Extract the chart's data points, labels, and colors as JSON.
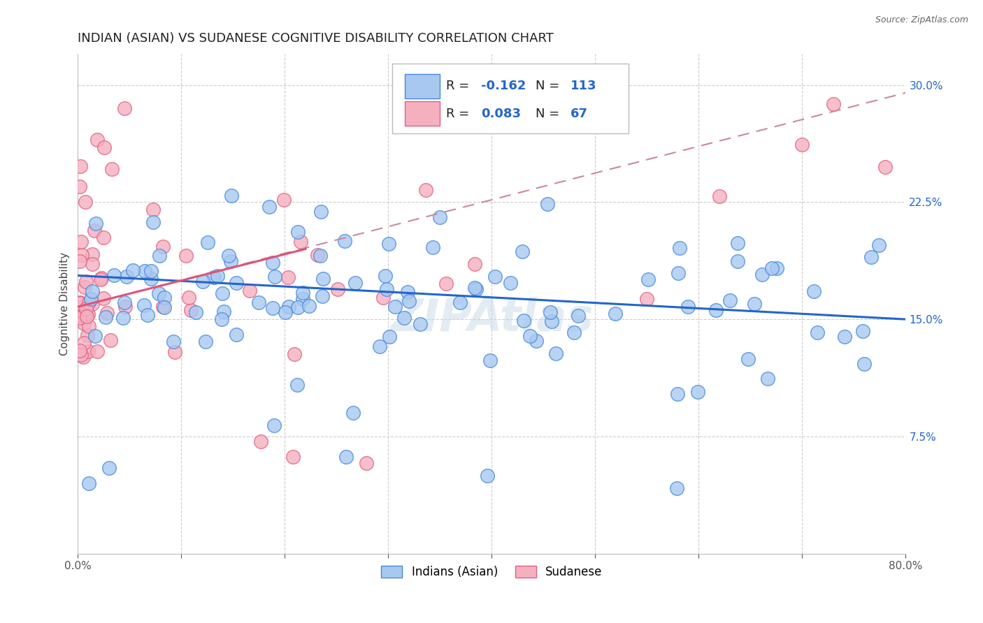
{
  "title": "INDIAN (ASIAN) VS SUDANESE COGNITIVE DISABILITY CORRELATION CHART",
  "source": "Source: ZipAtlas.com",
  "ylabel": "Cognitive Disability",
  "legend_label_blue": "Indians (Asian)",
  "legend_label_pink": "Sudanese",
  "r_blue": -0.162,
  "n_blue": 113,
  "r_pink": 0.083,
  "n_pink": 67,
  "xlim": [
    0.0,
    0.8
  ],
  "ylim": [
    0.0,
    0.32
  ],
  "yticks_right": [
    0.075,
    0.15,
    0.225,
    0.3
  ],
  "ytick_labels_right": [
    "7.5%",
    "15.0%",
    "22.5%",
    "30.0%"
  ],
  "watermark": "ZIPAtlas",
  "blue_fill": "#A8C8F0",
  "blue_edge": "#4488DD",
  "pink_fill": "#F5B0C0",
  "pink_edge": "#E06080",
  "blue_line_color": "#2266CC",
  "pink_solid_color": "#DD5577",
  "pink_dash_color": "#CC8899",
  "background_color": "#FFFFFF",
  "title_fontsize": 13,
  "right_tick_color": "#2266CC"
}
